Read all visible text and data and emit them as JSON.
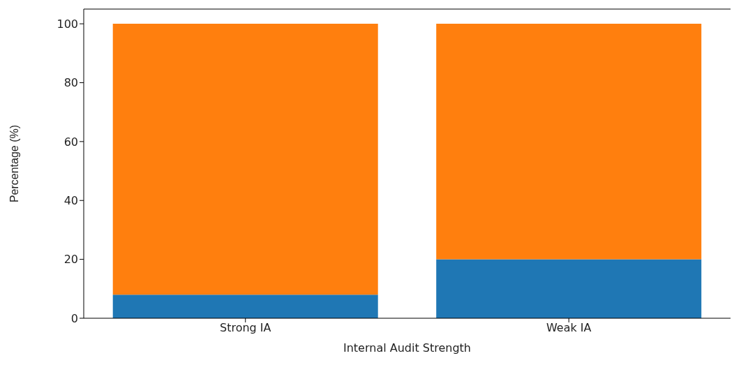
{
  "chart_data": {
    "type": "bar",
    "stacked": true,
    "categories": [
      "Strong IA",
      "Weak IA"
    ],
    "series": [
      {
        "color": "#1f77b4",
        "values": [
          8,
          20
        ]
      },
      {
        "color": "#ff7f0e",
        "values": [
          92,
          80
        ]
      }
    ],
    "xlabel": "Internal Audit Strength",
    "ylabel": "Percentage (%)",
    "ylim": [
      0,
      105
    ],
    "yticks": [
      0,
      20,
      40,
      60,
      80,
      100
    ],
    "legend": false
  }
}
